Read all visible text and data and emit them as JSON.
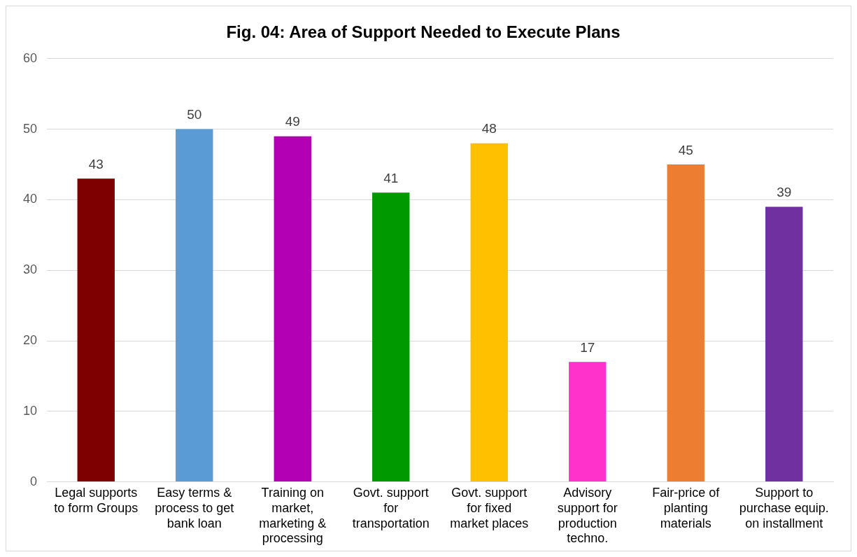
{
  "chart_data": {
    "type": "bar",
    "title": "Fig. 04: Area of Support Needed to Execute Plans",
    "categories": [
      "Legal supports to form Groups",
      "Easy terms & process to get bank loan",
      "Training on market, marketing & processing",
      "Govt. support for transportation",
      "Govt. support for fixed market places",
      "Advisory support for production techno.",
      "Fair-price of planting materials",
      "Support to purchase equip. on installment"
    ],
    "values": [
      43,
      50,
      49,
      41,
      48,
      17,
      45,
      39
    ],
    "colors": [
      "#7f0000",
      "#5b9bd5",
      "#b400b4",
      "#009900",
      "#ffc000",
      "#ff33cc",
      "#ed7d31",
      "#7030a0"
    ],
    "ylim": [
      0,
      60
    ],
    "yticks": [
      0,
      10,
      20,
      30,
      40,
      50,
      60
    ],
    "grid": "y",
    "data_labels": true
  }
}
